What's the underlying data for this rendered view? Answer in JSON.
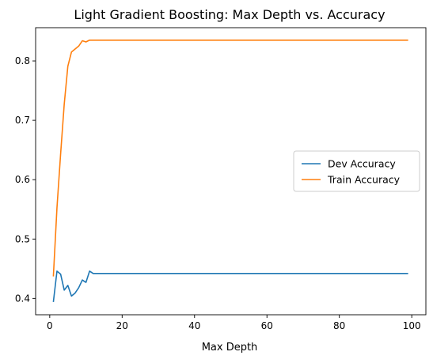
{
  "chart_data": {
    "type": "line",
    "title": "Light Gradient Boosting: Max Depth vs. Accuracy",
    "xlabel": "Max Depth",
    "ylabel": "",
    "xlim": [
      -3.9,
      103.9
    ],
    "ylim": [
      0.3725,
      0.856
    ],
    "xticks": [
      {
        "value": 0,
        "label": "0"
      },
      {
        "value": 20,
        "label": "20"
      },
      {
        "value": 40,
        "label": "40"
      },
      {
        "value": 60,
        "label": "60"
      },
      {
        "value": 80,
        "label": "80"
      },
      {
        "value": 100,
        "label": "100"
      }
    ],
    "yticks": [
      {
        "value": 0.4,
        "label": "0.4"
      },
      {
        "value": 0.5,
        "label": "0.5"
      },
      {
        "value": 0.6,
        "label": "0.6"
      },
      {
        "value": 0.7,
        "label": "0.7"
      },
      {
        "value": 0.8,
        "label": "0.8"
      }
    ],
    "grid": false,
    "legend_position": "center-right",
    "series": [
      {
        "name": "Dev Accuracy",
        "color": "#1f77b4",
        "x": [
          1,
          2,
          3,
          4,
          5,
          6,
          7,
          8,
          9,
          10,
          11,
          12,
          13,
          20,
          40,
          60,
          80,
          99
        ],
        "y": [
          0.394,
          0.446,
          0.441,
          0.414,
          0.422,
          0.404,
          0.409,
          0.418,
          0.431,
          0.427,
          0.446,
          0.442,
          0.442,
          0.442,
          0.442,
          0.442,
          0.442,
          0.442
        ]
      },
      {
        "name": "Train Accuracy",
        "color": "#ff7f0e",
        "x": [
          1,
          2,
          3,
          4,
          5,
          6,
          7,
          8,
          9,
          10,
          11,
          12,
          13,
          20,
          40,
          60,
          80,
          99
        ],
        "y": [
          0.437,
          0.553,
          0.643,
          0.727,
          0.791,
          0.815,
          0.82,
          0.825,
          0.834,
          0.832,
          0.835,
          0.835,
          0.835,
          0.835,
          0.835,
          0.835,
          0.835,
          0.835
        ]
      }
    ]
  }
}
